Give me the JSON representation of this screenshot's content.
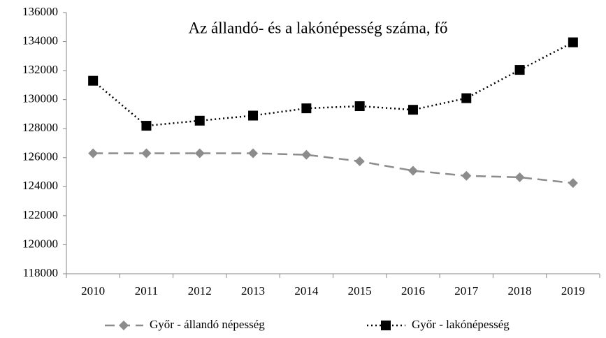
{
  "chart_data": {
    "type": "line",
    "title": "Az állandó- és a lakónépesség száma, fő",
    "categories": [
      "2010",
      "2011",
      "2012",
      "2013",
      "2014",
      "2015",
      "2016",
      "2017",
      "2018",
      "2019"
    ],
    "series": [
      {
        "name": "Győr - állandó népesség",
        "color": "#8c8c8c",
        "dash": "dashed",
        "marker": "diamond",
        "values": [
          126300,
          126300,
          126300,
          126300,
          126200,
          125750,
          125100,
          124750,
          124650,
          124250
        ]
      },
      {
        "name": "Győr - lakónépesség",
        "color": "#000000",
        "dash": "dotted",
        "marker": "square",
        "values": [
          131300,
          128200,
          128550,
          128900,
          129400,
          129550,
          129300,
          130100,
          132050,
          133950
        ]
      }
    ],
    "ylim": [
      118000,
      136000
    ],
    "yticks": [
      118000,
      120000,
      122000,
      124000,
      126000,
      128000,
      130000,
      132000,
      134000,
      136000
    ],
    "grid": false,
    "legend": "bottom"
  }
}
